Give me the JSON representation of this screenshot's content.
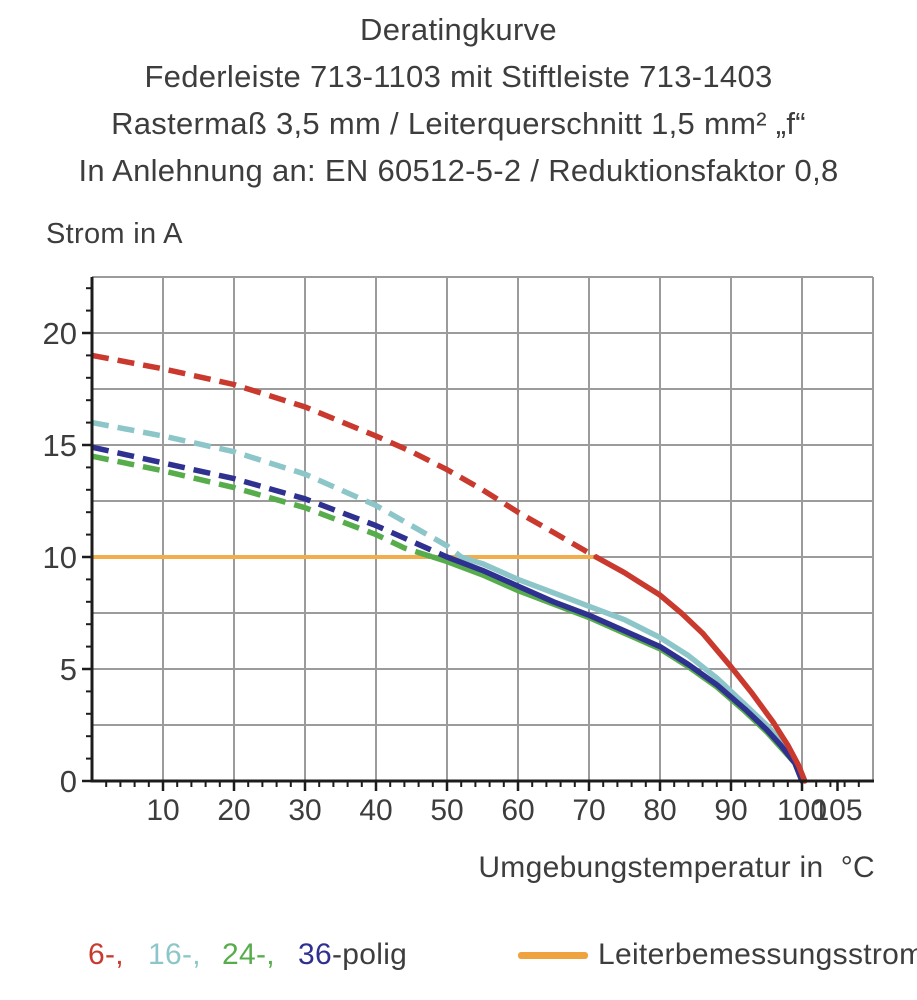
{
  "title_lines": [
    "Deratingkurve",
    "Federleiste 713-1103 mit Stiftleiste 713-1403",
    "Rastermaß 3,5 mm / Leiterquerschnitt 1,5 mm² „f“",
    "In Anlehnung an: EN 60512-5-2 / Reduktionsfaktor 0,8"
  ],
  "y_axis_label": "Strom in A",
  "x_axis_label": "Umgebungstemperatur in  °C",
  "legend": {
    "series": [
      {
        "label": "6-,",
        "color": "#c9392e"
      },
      {
        "label": "16-,",
        "color": "#8dc6c9"
      },
      {
        "label": "24-,",
        "color": "#57ad4b"
      },
      {
        "label": "36",
        "color": "#2f3190"
      }
    ],
    "suffix": "-polig",
    "suffix_color": "#3d3d3d",
    "rated_label": "Leiterbemessungsstrom",
    "rated_color": "#efa23e"
  },
  "chart_data": {
    "type": "line",
    "title": "Deratingkurve",
    "xlabel": "Umgebungstemperatur in °C",
    "ylabel": "Strom in A",
    "x_range": [
      0,
      110
    ],
    "y_range": [
      0,
      22.5
    ],
    "x_gridlines": [
      10,
      20,
      30,
      40,
      50,
      60,
      70,
      80,
      90,
      100
    ],
    "y_gridlines": [
      2.5,
      5,
      7.5,
      10,
      12.5,
      15,
      17.5,
      20
    ],
    "x_tick_labels": [
      10,
      20,
      30,
      40,
      50,
      60,
      70,
      80,
      90,
      100,
      105
    ],
    "y_tick_labels": [
      0,
      5,
      10,
      15,
      20
    ],
    "x_minor_step": 2,
    "y_minor_step": 1,
    "grid_on": true,
    "colors": {
      "grid": "#9b9b9b",
      "axis": "#1c1c1c",
      "tick_text": "#3d3d3d"
    },
    "rated_line": {
      "label": "Leiterbemessungsstrom",
      "y": 10,
      "x_start": 0,
      "x_end": 71,
      "color": "#f2ae4a"
    },
    "series": [
      {
        "name": "24-polig",
        "color": "#57ad4b",
        "dashed": [
          [
            0,
            14.5
          ],
          [
            10,
            13.85
          ],
          [
            20,
            13.1
          ],
          [
            30,
            12.2
          ],
          [
            40,
            11.0
          ],
          [
            44,
            10.4
          ],
          [
            48,
            10.0
          ]
        ],
        "solid": [
          [
            48,
            10.0
          ],
          [
            50,
            9.8
          ],
          [
            55,
            9.2
          ],
          [
            60,
            8.5
          ],
          [
            65,
            7.9
          ],
          [
            70,
            7.3
          ],
          [
            75,
            6.6
          ],
          [
            80,
            5.9
          ],
          [
            84,
            5.1
          ],
          [
            88,
            4.2
          ],
          [
            92,
            3.1
          ],
          [
            95,
            2.2
          ],
          [
            97,
            1.5
          ],
          [
            99,
            0.8
          ],
          [
            100,
            0
          ]
        ]
      },
      {
        "name": "16-polig",
        "color": "#8dc6c9",
        "dashed": [
          [
            0,
            16.0
          ],
          [
            10,
            15.4
          ],
          [
            20,
            14.7
          ],
          [
            30,
            13.7
          ],
          [
            40,
            12.3
          ],
          [
            45,
            11.4
          ],
          [
            50,
            10.5
          ],
          [
            52,
            10.0
          ]
        ],
        "solid": [
          [
            52,
            10.0
          ],
          [
            55,
            9.7
          ],
          [
            60,
            9.0
          ],
          [
            65,
            8.4
          ],
          [
            70,
            7.8
          ],
          [
            75,
            7.2
          ],
          [
            80,
            6.4
          ],
          [
            84,
            5.6
          ],
          [
            88,
            4.6
          ],
          [
            92,
            3.4
          ],
          [
            95,
            2.5
          ],
          [
            97,
            1.8
          ],
          [
            99,
            0.9
          ],
          [
            100,
            0
          ]
        ]
      },
      {
        "name": "36-polig",
        "color": "#2f3190",
        "dashed": [
          [
            0,
            14.9
          ],
          [
            10,
            14.2
          ],
          [
            20,
            13.5
          ],
          [
            30,
            12.6
          ],
          [
            40,
            11.4
          ],
          [
            45,
            10.7
          ],
          [
            50,
            10.0
          ]
        ],
        "solid": [
          [
            50,
            10.0
          ],
          [
            55,
            9.4
          ],
          [
            60,
            8.7
          ],
          [
            65,
            8.0
          ],
          [
            70,
            7.4
          ],
          [
            75,
            6.7
          ],
          [
            80,
            6.0
          ],
          [
            84,
            5.2
          ],
          [
            88,
            4.3
          ],
          [
            92,
            3.2
          ],
          [
            95,
            2.3
          ],
          [
            97,
            1.6
          ],
          [
            99,
            0.8
          ],
          [
            100,
            0
          ]
        ]
      },
      {
        "name": "6-polig",
        "color": "#c9392e",
        "dashed": [
          [
            0,
            19.0
          ],
          [
            10,
            18.4
          ],
          [
            20,
            17.7
          ],
          [
            30,
            16.7
          ],
          [
            40,
            15.4
          ],
          [
            45,
            14.7
          ],
          [
            50,
            13.9
          ],
          [
            55,
            13.0
          ],
          [
            60,
            12.0
          ],
          [
            65,
            11.1
          ],
          [
            71,
            10.0
          ]
        ],
        "solid": [
          [
            71,
            10.0
          ],
          [
            75,
            9.3
          ],
          [
            80,
            8.3
          ],
          [
            83,
            7.5
          ],
          [
            86,
            6.6
          ],
          [
            90,
            5.1
          ],
          [
            93,
            3.9
          ],
          [
            96,
            2.6
          ],
          [
            98,
            1.6
          ],
          [
            99.5,
            0.7
          ],
          [
            100.4,
            0
          ]
        ]
      }
    ]
  }
}
